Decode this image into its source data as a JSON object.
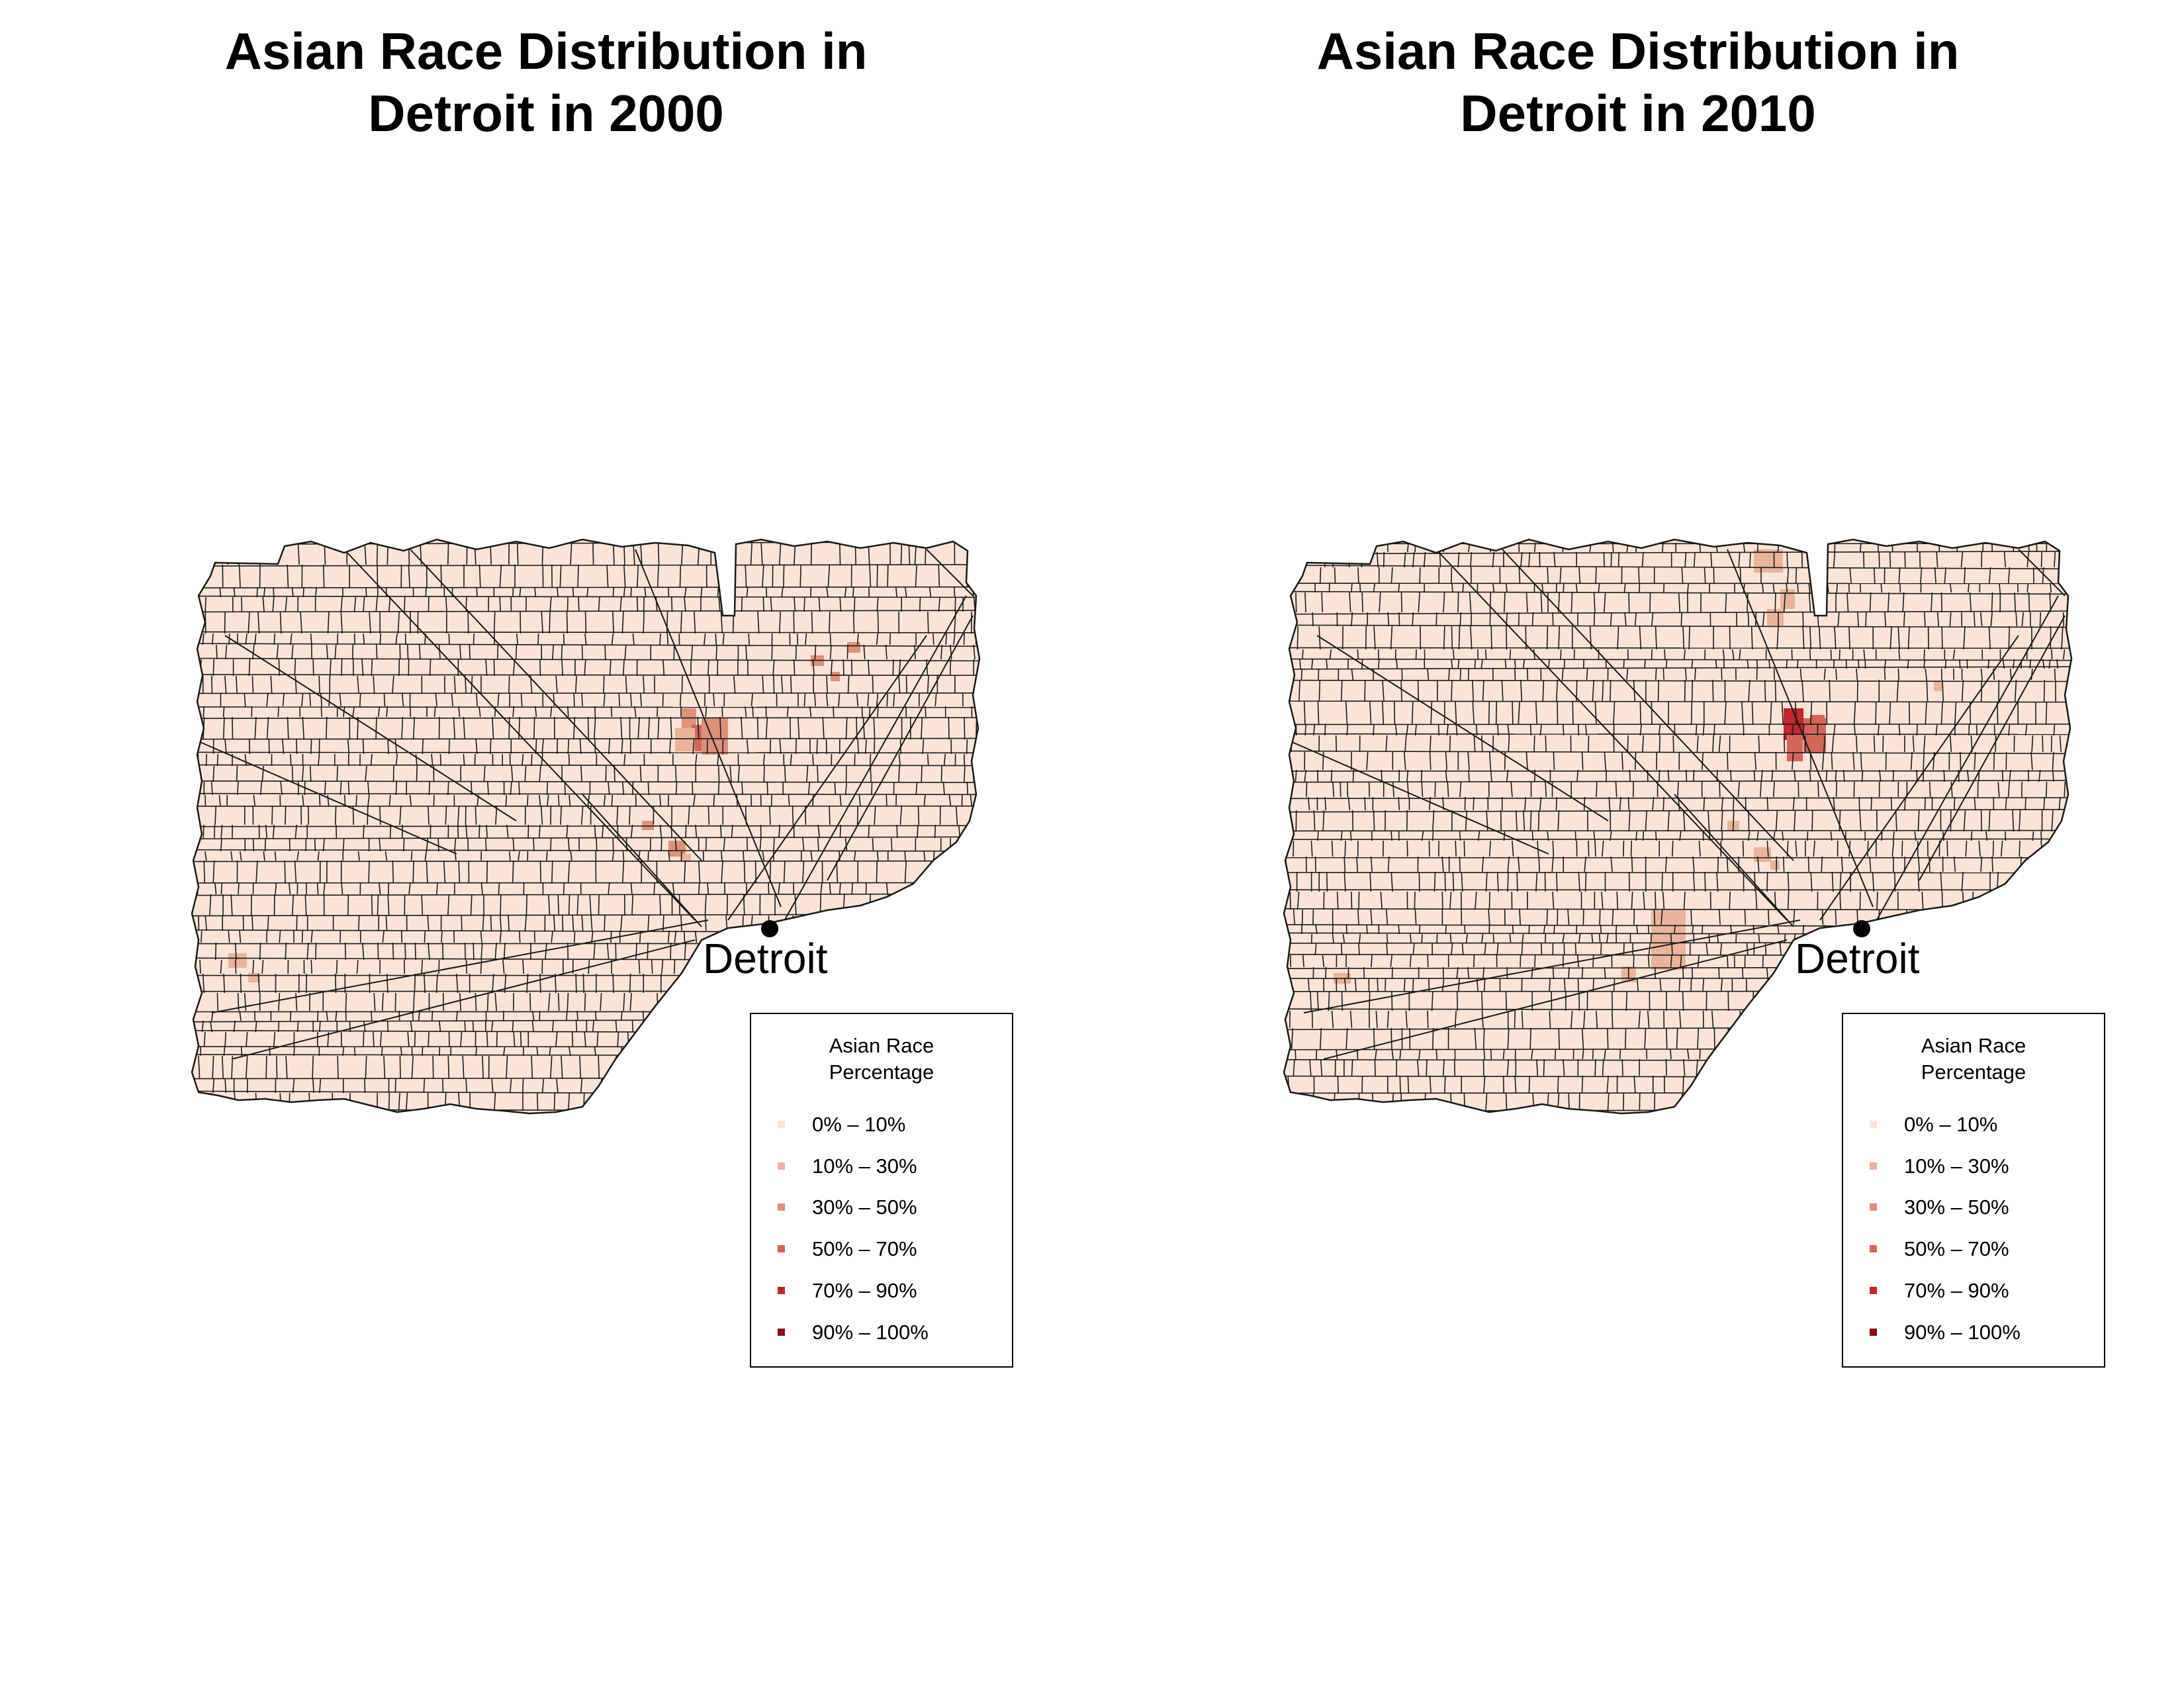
{
  "maps": [
    {
      "title_line1": "Asian Race Distribution in",
      "title_line2": "Detroit in 2000",
      "city_label": "Detroit",
      "legend": {
        "title_line1": "Asian Race",
        "title_line2": "Percentage",
        "items": [
          {
            "label": "0% – 10%",
            "color": "#FBE6DA"
          },
          {
            "label": "10% – 30%",
            "color": "#E9B49B"
          },
          {
            "label": "30% – 50%",
            "color": "#DE917A"
          },
          {
            "label": "50% – 70%",
            "color": "#D2665A"
          },
          {
            "label": "70% – 90%",
            "color": "#C1272D"
          },
          {
            "label": "90% – 100%",
            "color": "#8B0A13"
          }
        ]
      }
    },
    {
      "title_line1": "Asian Race Distribution in",
      "title_line2": "Detroit in 2010",
      "city_label": "Detroit",
      "legend": {
        "title_line1": "Asian Race",
        "title_line2": "Percentage",
        "items": [
          {
            "label": "0% – 10%",
            "color": "#FBE6DA"
          },
          {
            "label": "10% – 30%",
            "color": "#E9B49B"
          },
          {
            "label": "30% – 50%",
            "color": "#DE917A"
          },
          {
            "label": "50% – 70%",
            "color": "#D2665A"
          },
          {
            "label": "70% – 90%",
            "color": "#C1272D"
          },
          {
            "label": "90% – 100%",
            "color": "#8B0A13"
          }
        ]
      }
    }
  ],
  "colors": {
    "base_fill": "#F9E4D7",
    "tract_border": "#1a1a1a",
    "marker": "#000000"
  }
}
